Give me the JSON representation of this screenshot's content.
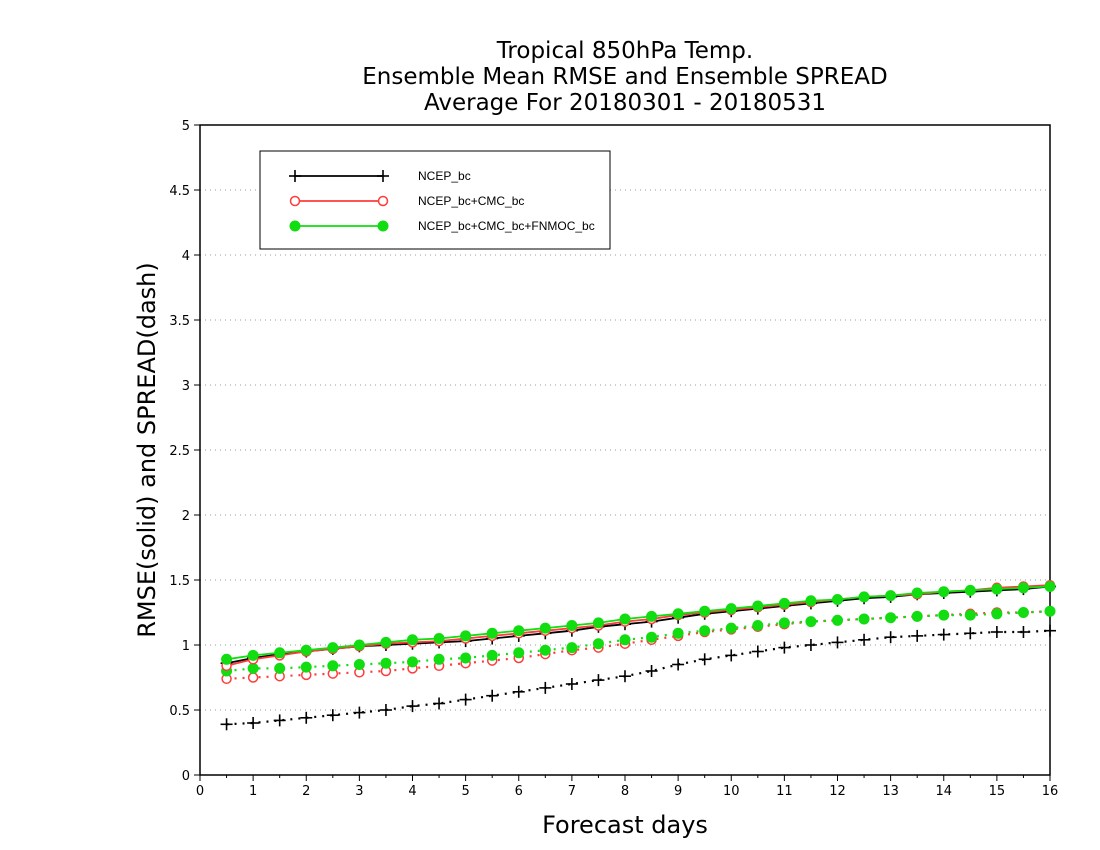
{
  "chart_data": {
    "type": "line",
    "title_lines": [
      "Tropical 850hPa Temp.",
      "Ensemble Mean RMSE and Ensemble SPREAD",
      "Average For 20180301 - 20180531"
    ],
    "xlabel": "Forecast days",
    "ylabel": "RMSE(solid) and SPREAD(dash)",
    "xlim": [
      0,
      16
    ],
    "ylim": [
      0,
      5
    ],
    "xticks": [
      "0",
      "1",
      "2",
      "3",
      "4",
      "5",
      "6",
      "7",
      "8",
      "9",
      "10",
      "11",
      "12",
      "13",
      "14",
      "15",
      "16"
    ],
    "yticks": [
      "0",
      "0.5",
      "1",
      "1.5",
      "2",
      "2.5",
      "3",
      "3.5",
      "4",
      "4.5",
      "5"
    ],
    "grid": "horizontal dotted",
    "legend_position": "top-left",
    "x": [
      0.5,
      1,
      1.5,
      2,
      2.5,
      3,
      3.5,
      4,
      4.5,
      5,
      5.5,
      6,
      6.5,
      7,
      7.5,
      8,
      8.5,
      9,
      9.5,
      10,
      10.5,
      11,
      11.5,
      12,
      12.5,
      13,
      13.5,
      14,
      14.5,
      15,
      15.5,
      16
    ],
    "series": [
      {
        "name": "NCEP_bc",
        "color": "#000000",
        "marker": "plus",
        "rmse": [
          0.86,
          0.9,
          0.93,
          0.95,
          0.97,
          0.99,
          1.0,
          1.01,
          1.02,
          1.03,
          1.05,
          1.07,
          1.09,
          1.11,
          1.14,
          1.16,
          1.18,
          1.21,
          1.24,
          1.26,
          1.28,
          1.3,
          1.32,
          1.34,
          1.36,
          1.37,
          1.39,
          1.4,
          1.41,
          1.42,
          1.43,
          1.45
        ],
        "spread": [
          0.39,
          0.4,
          0.42,
          0.44,
          0.46,
          0.48,
          0.5,
          0.53,
          0.55,
          0.58,
          0.61,
          0.64,
          0.67,
          0.7,
          0.73,
          0.76,
          0.8,
          0.85,
          0.89,
          0.92,
          0.95,
          0.98,
          1.0,
          1.02,
          1.04,
          1.06,
          1.07,
          1.08,
          1.09,
          1.1,
          1.1,
          1.11
        ]
      },
      {
        "name": "NCEP_bc+CMC_bc",
        "color": "#ff3b3b",
        "marker": "open-circle",
        "rmse": [
          0.84,
          0.89,
          0.92,
          0.95,
          0.97,
          0.99,
          1.01,
          1.02,
          1.03,
          1.05,
          1.07,
          1.09,
          1.11,
          1.13,
          1.15,
          1.18,
          1.2,
          1.23,
          1.25,
          1.27,
          1.29,
          1.31,
          1.33,
          1.35,
          1.37,
          1.38,
          1.39,
          1.41,
          1.42,
          1.44,
          1.45,
          1.46
        ],
        "spread": [
          0.74,
          0.75,
          0.76,
          0.77,
          0.78,
          0.79,
          0.8,
          0.82,
          0.84,
          0.86,
          0.88,
          0.9,
          0.93,
          0.96,
          0.98,
          1.01,
          1.04,
          1.07,
          1.1,
          1.12,
          1.14,
          1.16,
          1.18,
          1.19,
          1.2,
          1.21,
          1.22,
          1.23,
          1.24,
          1.25,
          1.25,
          1.26
        ]
      },
      {
        "name": "NCEP_bc+CMC_bc+FNMOC_bc",
        "color": "#11dd11",
        "marker": "filled-circle",
        "rmse": [
          0.89,
          0.92,
          0.94,
          0.96,
          0.98,
          1.0,
          1.02,
          1.04,
          1.05,
          1.07,
          1.09,
          1.11,
          1.13,
          1.15,
          1.17,
          1.2,
          1.22,
          1.24,
          1.26,
          1.28,
          1.3,
          1.32,
          1.34,
          1.35,
          1.37,
          1.38,
          1.4,
          1.41,
          1.42,
          1.43,
          1.44,
          1.45
        ],
        "spread": [
          0.8,
          0.82,
          0.82,
          0.83,
          0.84,
          0.85,
          0.86,
          0.87,
          0.89,
          0.9,
          0.92,
          0.94,
          0.96,
          0.98,
          1.01,
          1.04,
          1.06,
          1.09,
          1.11,
          1.13,
          1.15,
          1.17,
          1.18,
          1.19,
          1.2,
          1.21,
          1.22,
          1.23,
          1.23,
          1.24,
          1.25,
          1.26
        ]
      }
    ]
  }
}
